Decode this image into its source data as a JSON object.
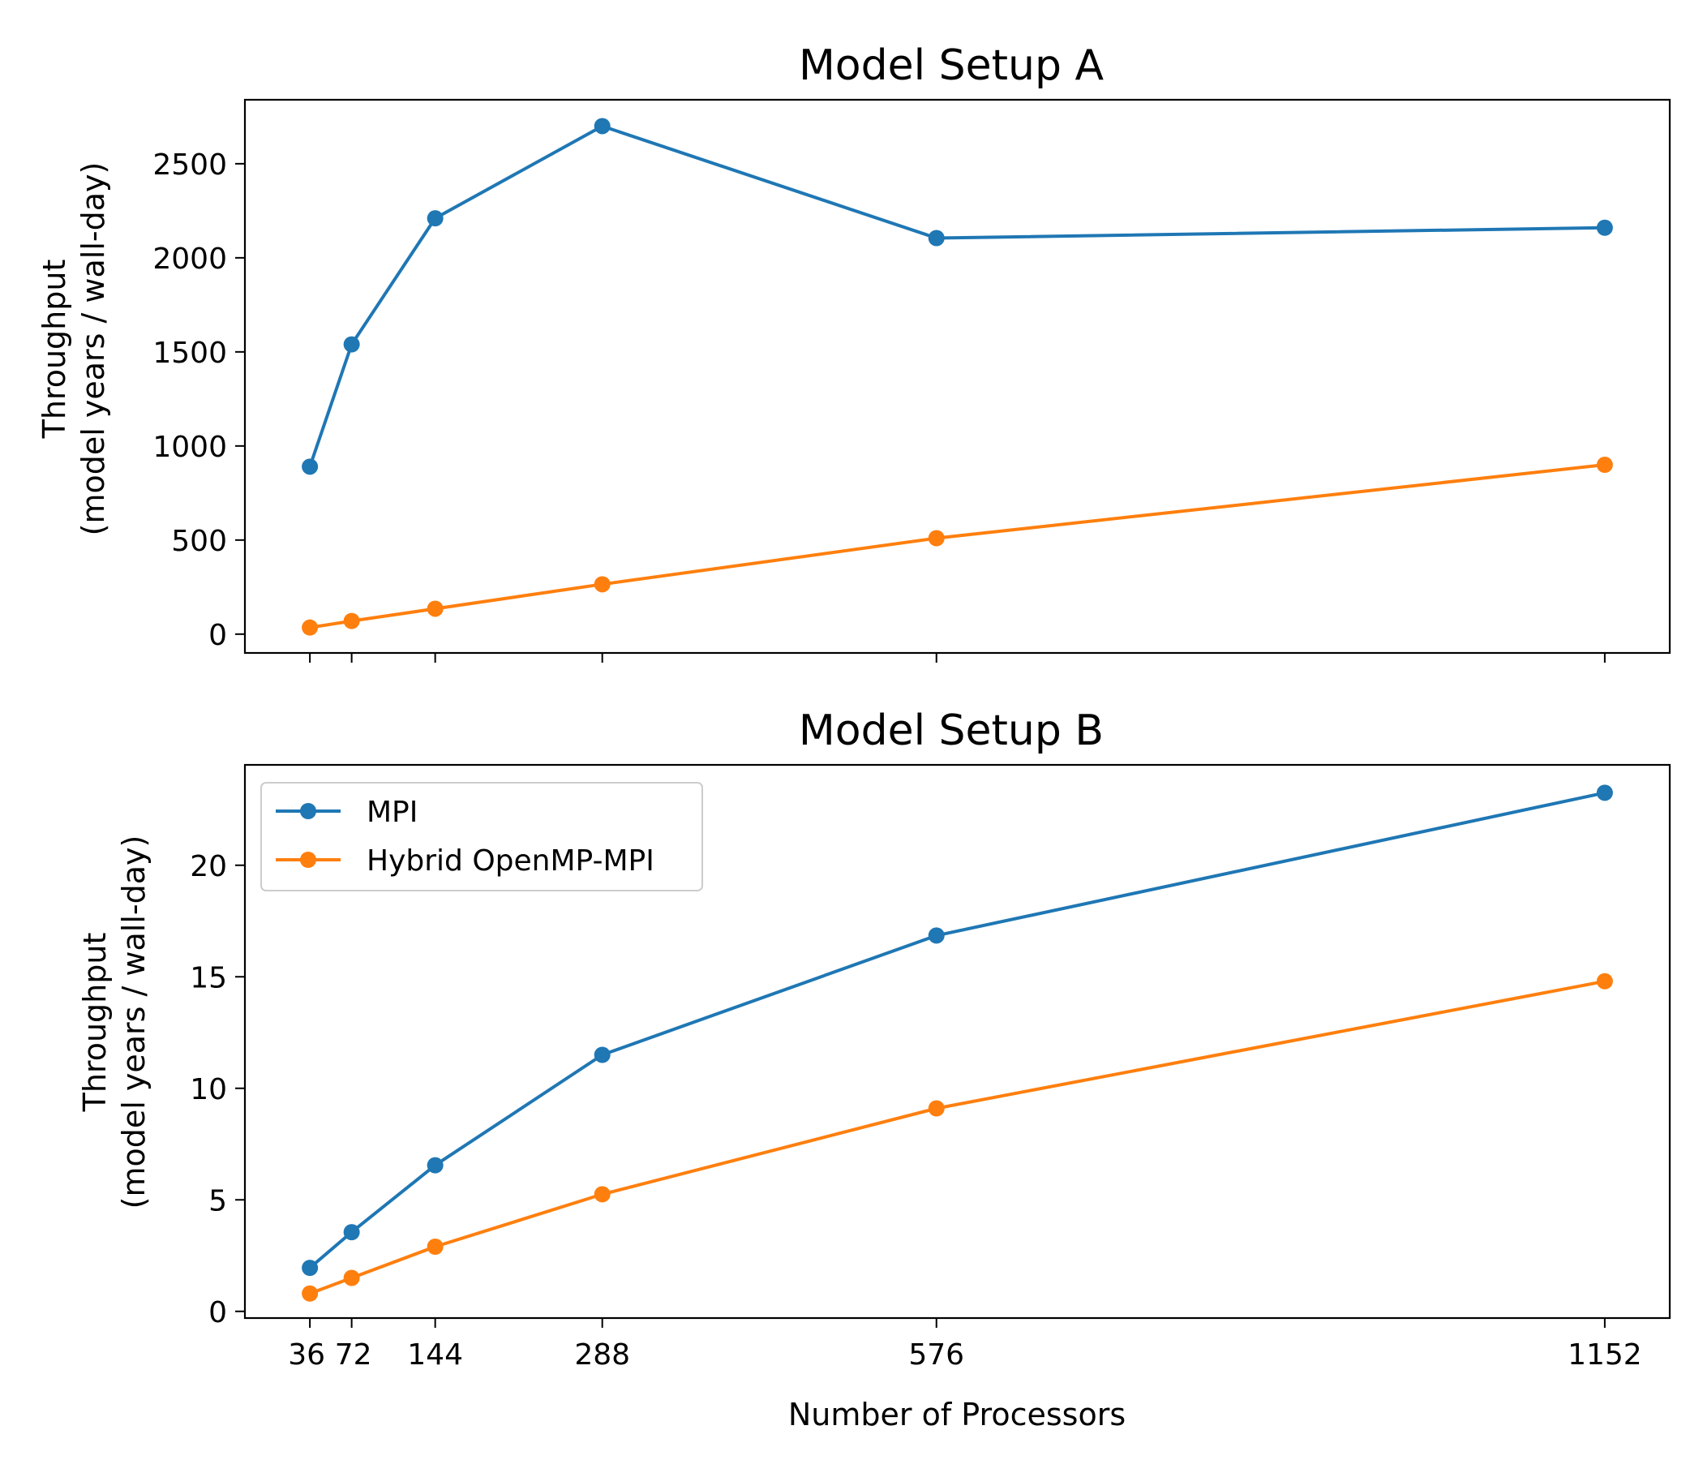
{
  "figure": {
    "xlabel": "Number of Processors"
  },
  "chart_data": [
    {
      "type": "line",
      "title": "Model Setup A",
      "xlabel": "",
      "ylabel": [
        "Throughput",
        "(model years / wall-day)"
      ],
      "x": [
        36,
        72,
        144,
        288,
        576,
        1152
      ],
      "xlim": [
        -20,
        1208
      ],
      "ylim": [
        -100,
        2840
      ],
      "yticks": [
        0,
        500,
        1000,
        1500,
        2000,
        2500
      ],
      "ytick_labels": [
        "0",
        "500",
        "1000",
        "1500",
        "2000",
        "2500"
      ],
      "xticks": [
        36,
        72,
        144,
        288,
        576,
        1152
      ],
      "xtick_labels_visible": false,
      "grid": false,
      "series": [
        {
          "name": "MPI",
          "color": "#1f77b4",
          "values": [
            890,
            1540,
            2210,
            2700,
            2105,
            2160
          ]
        },
        {
          "name": "Hybrid OpenMP-MPI",
          "color": "#ff7f0e",
          "values": [
            35,
            70,
            135,
            265,
            510,
            900
          ]
        }
      ]
    },
    {
      "type": "line",
      "title": "Model Setup B",
      "xlabel": "Number of Processors",
      "ylabel": [
        "Throughput",
        "(model years / wall-day)"
      ],
      "x": [
        36,
        72,
        144,
        288,
        576,
        1152
      ],
      "xlim": [
        -20,
        1208
      ],
      "ylim": [
        -0.3,
        24.5
      ],
      "yticks": [
        0,
        5,
        10,
        15,
        20
      ],
      "ytick_labels": [
        "0",
        "5",
        "10",
        "15",
        "20"
      ],
      "xticks": [
        36,
        72,
        144,
        288,
        576,
        1152
      ],
      "xtick_labels": [
        "36",
        "72",
        "144",
        "288",
        "576",
        "1152"
      ],
      "grid": false,
      "legend": {
        "placement": "upper-left",
        "entries": [
          "MPI",
          "Hybrid OpenMP-MPI"
        ]
      },
      "series": [
        {
          "name": "MPI",
          "color": "#1f77b4",
          "values": [
            1.95,
            3.55,
            6.55,
            11.5,
            16.85,
            23.25
          ]
        },
        {
          "name": "Hybrid OpenMP-MPI",
          "color": "#ff7f0e",
          "values": [
            0.8,
            1.5,
            2.9,
            5.25,
            9.1,
            14.8
          ]
        }
      ]
    }
  ]
}
